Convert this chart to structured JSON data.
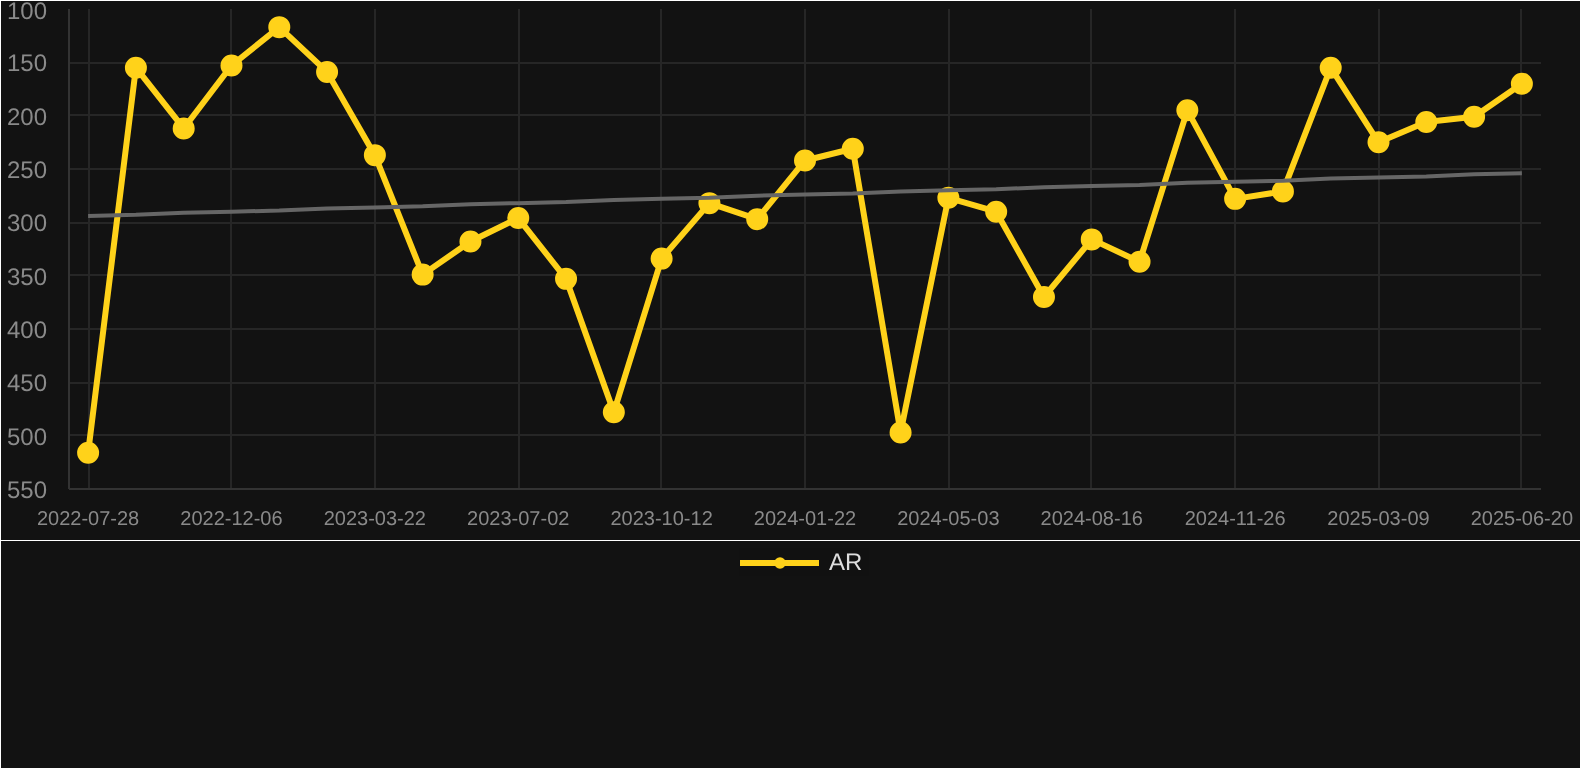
{
  "chart_data": {
    "type": "line",
    "categories": [
      "2022-07-28",
      null,
      null,
      "2022-12-06",
      null,
      null,
      "2023-03-22",
      null,
      null,
      "2023-07-02",
      null,
      null,
      "2023-10-12",
      null,
      null,
      "2024-01-22",
      null,
      null,
      "2024-05-03",
      null,
      null,
      "2024-08-16",
      null,
      null,
      "2024-11-26",
      null,
      null,
      "2025-03-09",
      null,
      null,
      "2025-06-20"
    ],
    "series": [
      {
        "name": "AR",
        "color": "#ffd21a",
        "marker": "circle",
        "values": [
          516,
          155,
          212,
          153,
          117,
          159,
          237,
          349,
          318,
          296,
          353,
          478,
          334,
          282,
          297,
          242,
          231,
          497,
          277,
          290,
          370,
          316,
          337,
          195,
          278,
          271,
          155,
          225,
          206,
          201,
          170
        ]
      },
      {
        "type": "line",
        "color": "#666666",
        "marker": "none",
        "values": [
          294,
          293,
          291,
          290,
          289,
          287,
          286,
          285,
          283,
          282,
          281,
          279,
          278,
          277,
          275,
          274,
          273,
          271,
          270,
          269,
          267,
          266,
          265,
          263,
          262,
          261,
          259,
          258,
          257,
          255,
          254
        ]
      }
    ],
    "ylim": [
      550,
      100
    ],
    "yticks": [
      100,
      150,
      200,
      250,
      300,
      350,
      400,
      450,
      500,
      550
    ],
    "grid": true,
    "legend": "bottom"
  }
}
